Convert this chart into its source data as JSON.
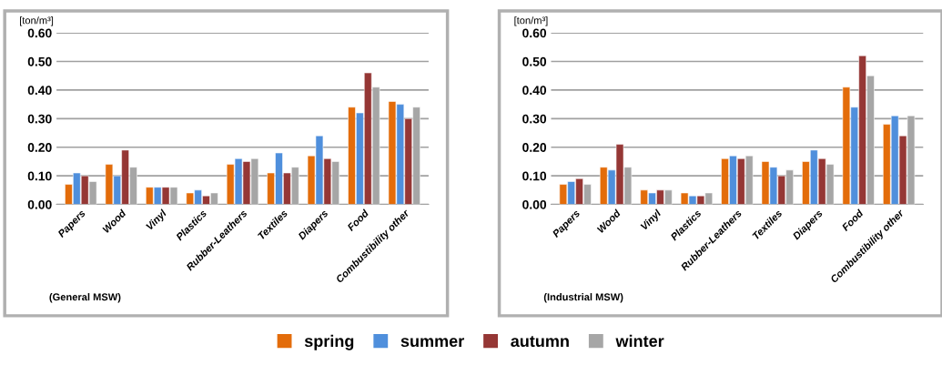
{
  "chart_data": [
    {
      "type": "bar",
      "ylabel": "[ton/m³]",
      "categories": [
        "Papers",
        "Wood",
        "Vinyl",
        "Plastics",
        "Rubber-Leathers",
        "Textiles",
        "Diapers",
        "Food",
        "Combustibility other"
      ],
      "series": [
        {
          "name": "spring",
          "color": "#e36c0a",
          "values": [
            0.07,
            0.14,
            0.06,
            0.04,
            0.14,
            0.11,
            0.17,
            0.34,
            0.36
          ]
        },
        {
          "name": "summer",
          "color": "#4f8fdc",
          "values": [
            0.11,
            0.1,
            0.06,
            0.05,
            0.16,
            0.18,
            0.24,
            0.32,
            0.35
          ]
        },
        {
          "name": "autumn",
          "color": "#953735",
          "values": [
            0.1,
            0.19,
            0.06,
            0.03,
            0.15,
            0.11,
            0.16,
            0.46,
            0.3
          ]
        },
        {
          "name": "winter",
          "color": "#a6a6a6",
          "values": [
            0.08,
            0.13,
            0.06,
            0.04,
            0.16,
            0.13,
            0.15,
            0.41,
            0.34
          ]
        }
      ],
      "ylim": [
        0,
        0.6
      ],
      "yticks": [
        {
          "value": 0,
          "label": "0.00"
        },
        {
          "value": 0.1,
          "label": "0.10"
        },
        {
          "value": 0.2,
          "label": "0.20"
        },
        {
          "value": 0.3,
          "label": "0.30"
        },
        {
          "value": 0.4,
          "label": "0.40"
        },
        {
          "value": 0.5,
          "label": "0.50"
        },
        {
          "value": 0.6,
          "label": "0.60"
        }
      ],
      "grid": "y",
      "legend": "bottom",
      "annotations": [
        "(General MSW)"
      ]
    },
    {
      "type": "bar",
      "ylabel": "[ton/m³]",
      "categories": [
        "Papers",
        "Wood",
        "Vinyl",
        "Plastics",
        "Rubber-Leathers",
        "Textiles",
        "Diapers",
        "Food",
        "Combustibility other"
      ],
      "series": [
        {
          "name": "spring",
          "color": "#e36c0a",
          "values": [
            0.07,
            0.13,
            0.05,
            0.04,
            0.16,
            0.15,
            0.15,
            0.41,
            0.28
          ]
        },
        {
          "name": "summer",
          "color": "#4f8fdc",
          "values": [
            0.08,
            0.12,
            0.04,
            0.03,
            0.17,
            0.13,
            0.19,
            0.34,
            0.31
          ]
        },
        {
          "name": "autumn",
          "color": "#953735",
          "values": [
            0.09,
            0.21,
            0.05,
            0.03,
            0.16,
            0.1,
            0.16,
            0.52,
            0.24
          ]
        },
        {
          "name": "winter",
          "color": "#a6a6a6",
          "values": [
            0.07,
            0.13,
            0.05,
            0.04,
            0.17,
            0.12,
            0.14,
            0.45,
            0.31
          ]
        }
      ],
      "ylim": [
        0,
        0.6
      ],
      "yticks": [
        {
          "value": 0,
          "label": "0.00"
        },
        {
          "value": 0.1,
          "label": "0.10"
        },
        {
          "value": 0.2,
          "label": "0.20"
        },
        {
          "value": 0.3,
          "label": "0.30"
        },
        {
          "value": 0.4,
          "label": "0.40"
        },
        {
          "value": 0.5,
          "label": "0.50"
        },
        {
          "value": 0.6,
          "label": "0.60"
        }
      ],
      "grid": "y",
      "annotations": [
        "(Industrial MSW)"
      ]
    }
  ]
}
